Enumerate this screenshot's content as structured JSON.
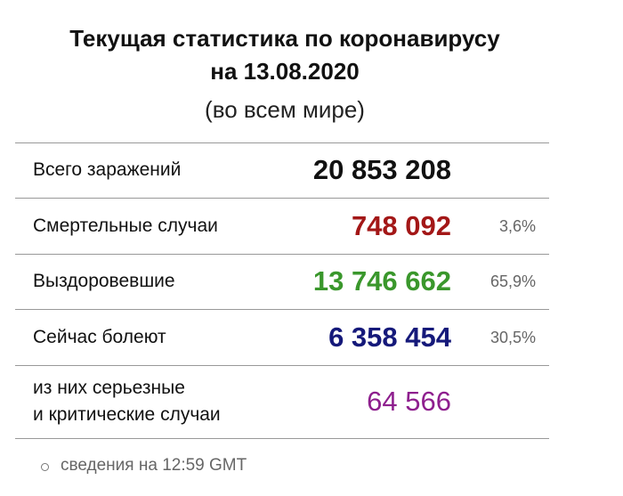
{
  "header": {
    "title": [
      "Текущая статистика по коронавирусу",
      "на 13.08.2020"
    ],
    "subtitle": "(во всем мире)"
  },
  "table": {
    "rows": [
      {
        "label": [
          "Всего заражений"
        ],
        "value": "20 853 208",
        "color": "#111111"
      },
      {
        "label": [
          "Смертельные случаи"
        ],
        "value": "748 092",
        "percent": "3,6%",
        "color": "#a31717"
      },
      {
        "label": [
          "Выздоровевшие"
        ],
        "value": "13 746 662",
        "percent": "65,9%",
        "color": "#3a972c"
      },
      {
        "label": [
          "Сейчас болеют"
        ],
        "value": "6 358 454",
        "percent": "30,5%",
        "color": "#15197a"
      },
      {
        "label": [
          "из них серьезные",
          "и критические случаи"
        ],
        "value": "64 566",
        "color": "#8e1f8e",
        "bold": false
      }
    ]
  },
  "footer": "сведения на 12:59 GMT"
}
